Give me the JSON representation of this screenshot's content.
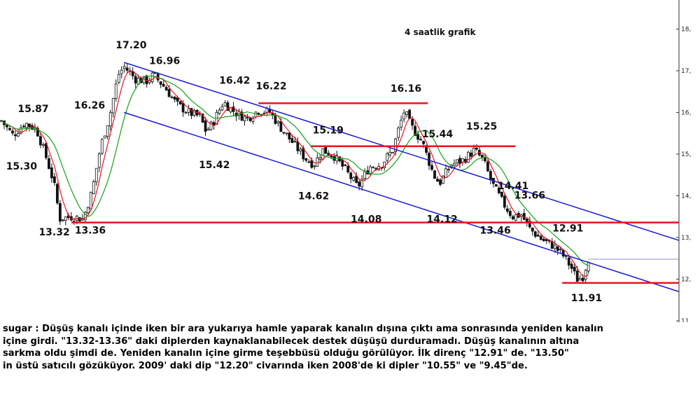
{
  "chart_data": {
    "type": "candlestick",
    "title": "4 saatlik grafik",
    "ylim": [
      11.0,
      18.5
    ],
    "y_ticks": [
      "18,",
      "17,",
      "16,",
      "15,",
      "14,",
      "13,",
      "12,",
      "11,"
    ],
    "y_tick_values": [
      18,
      17,
      16,
      15,
      14,
      13,
      12,
      11
    ],
    "annotations": [
      {
        "text": "17.20",
        "x": 42,
        "value": 17.2
      },
      {
        "text": "16.96",
        "x": 52,
        "value": 16.96
      },
      {
        "text": "16.26",
        "x": 34,
        "value": 16.26
      },
      {
        "text": "15.87",
        "x": 8,
        "value": 15.87
      },
      {
        "text": "15.30",
        "x": 4,
        "value": 15.3
      },
      {
        "text": "16.42",
        "x": 76,
        "value": 16.42
      },
      {
        "text": "16.22",
        "x": 89,
        "value": 16.22
      },
      {
        "text": "15.42",
        "x": 70,
        "value": 15.42
      },
      {
        "text": "15.19",
        "x": 108,
        "value": 15.19
      },
      {
        "text": "14.62",
        "x": 104,
        "value": 14.62
      },
      {
        "text": "16.16",
        "x": 138,
        "value": 16.16
      },
      {
        "text": "15.44",
        "x": 144,
        "value": 15.44
      },
      {
        "text": "14.08",
        "x": 122,
        "value": 14.08
      },
      {
        "text": "14.12",
        "x": 148,
        "value": 14.12
      },
      {
        "text": "15.25",
        "x": 162,
        "value": 15.25
      },
      {
        "text": "14.41",
        "x": 168,
        "value": 14.41
      },
      {
        "text": "13.66",
        "x": 178,
        "value": 13.66
      },
      {
        "text": "13.46",
        "x": 171,
        "value": 13.46
      },
      {
        "text": "12.91",
        "x": 192,
        "value": 12.91
      },
      {
        "text": "11.91",
        "x": 196,
        "value": 11.91
      },
      {
        "text": "13.32",
        "x": 20,
        "value": 13.32
      },
      {
        "text": "13.36",
        "x": 28,
        "value": 13.36
      }
    ],
    "horizontal_levels": [
      {
        "value": 13.36,
        "x_start": 24,
        "x_end": 232,
        "color": "#e8141e"
      },
      {
        "value": 16.22,
        "x_start": 88,
        "x_end": 146,
        "color": "#e8141e"
      },
      {
        "value": 15.19,
        "x_start": 106,
        "x_end": 176,
        "color": "#e8141e"
      },
      {
        "value": 11.91,
        "x_start": 192,
        "x_end": 232,
        "color": "#e8141e"
      }
    ],
    "channel_lines": [
      {
        "x1": 42,
        "y1": 17.2,
        "x2": 232,
        "y2": 12.93,
        "color": "#1a1adc"
      },
      {
        "x1": 42,
        "y1": 16.0,
        "x2": 232,
        "y2": 11.7,
        "color": "#1a1adc"
      }
    ],
    "price_line": {
      "value": 12.48,
      "x_start": 201,
      "x_end": 232,
      "color": "#8c8fd0"
    },
    "x_range": [
      0,
      232
    ],
    "colors": {
      "candles": "#111111",
      "ma_fast": "#e8141e",
      "ma_slow": "#14a014",
      "channel": "#1a1adc",
      "levels": "#e8141e"
    }
  },
  "commentary": [
    "sugar : Düşüş kanalı içinde iken bir ara yukarıya hamle yaparak kanalın dışına çıktı ama sonrasında yeniden kanalın",
    "içine girdi. \"13.32-13.36\" daki diplerden kaynaklanabilecek destek düşüşü durduramadı. Düşüş kanalının altına",
    "sarkma oldu şimdi de. Yeniden kanalın içine girme teşebbüsü olduğu görülüyor. İlk direnç \"12.91\" de. \"13.50\"",
    "in üstü satıcılı gözüküyor. 2009' daki dip \"12.20\" civarında iken 2008'de ki dipler \"10.55\" ve \"9.45\"de."
  ]
}
